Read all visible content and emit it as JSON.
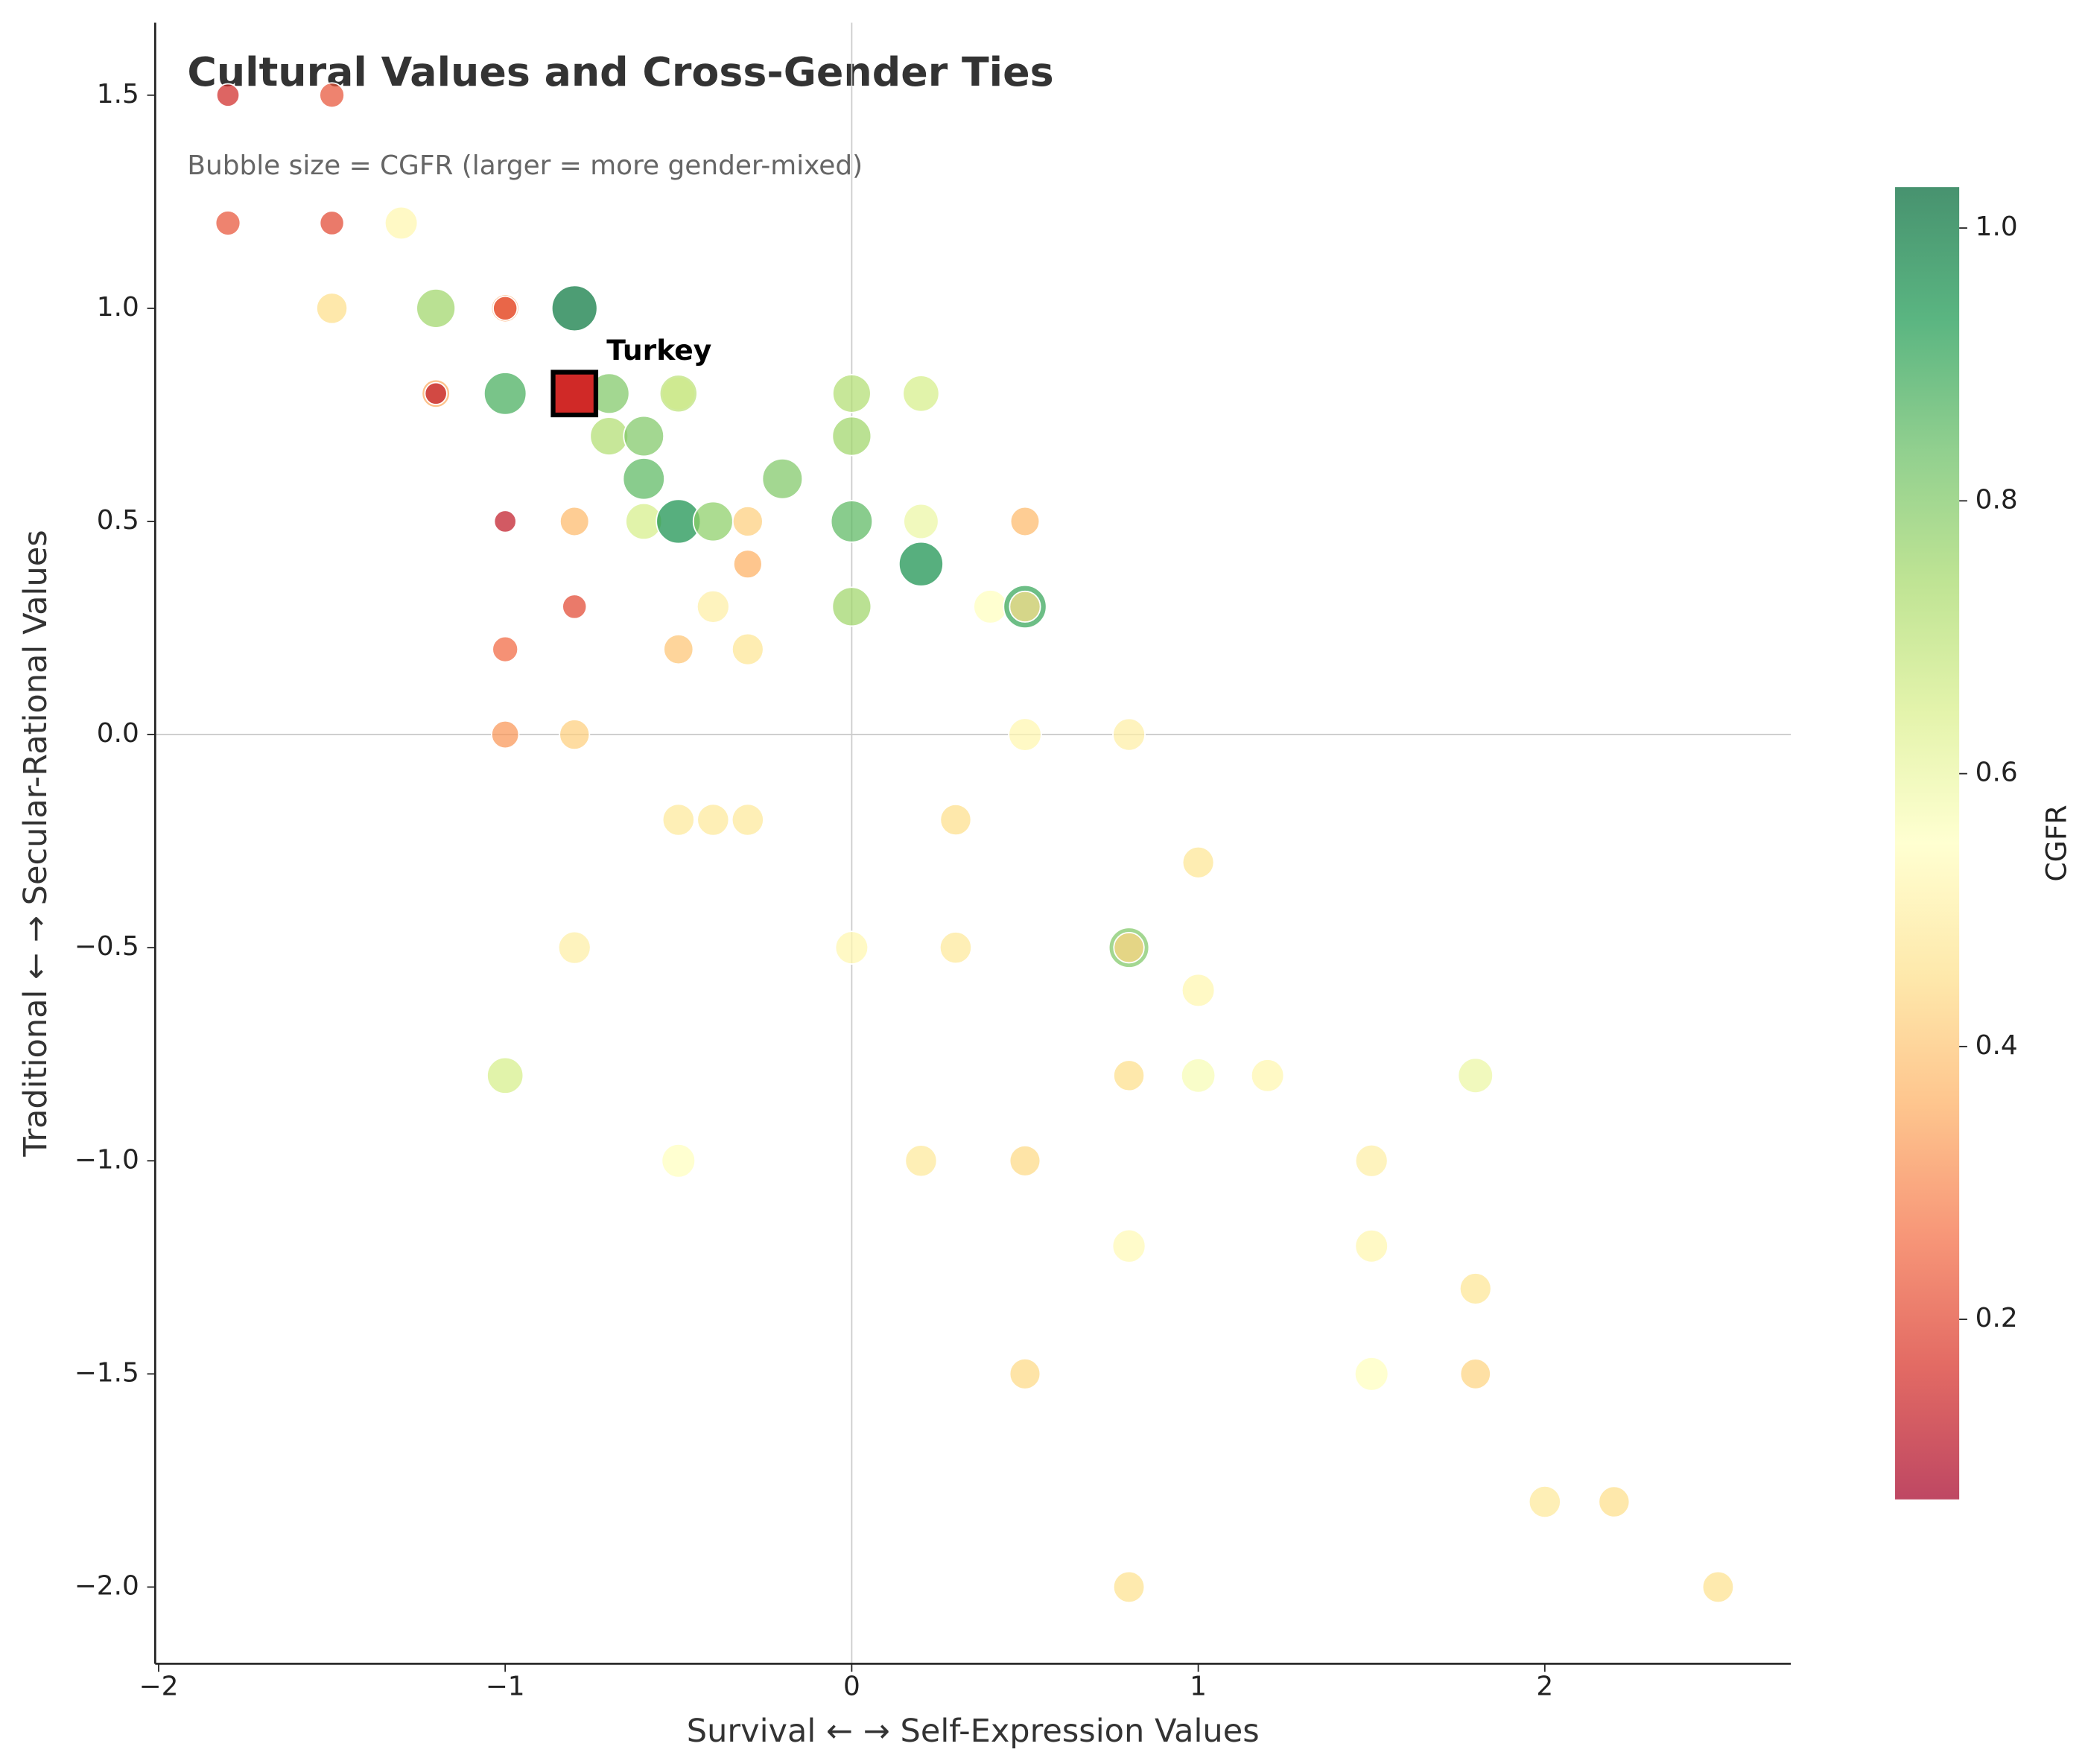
{
  "chart_data": {
    "type": "bubble",
    "title": "Cultural Values and Cross-Gender Ties",
    "subtitle": "Bubble size = CGFR (larger = more gender-mixed)",
    "x_label": "Survival ← → Self-Expression Values",
    "y_label": "Traditional ← → Secular-Rational Values",
    "colorbar_label": "CGFR",
    "xlim": [
      -2.01,
      2.71
    ],
    "ylim": [
      -2.18,
      1.67
    ],
    "xticks": [
      {
        "value": -2,
        "label": "−2"
      },
      {
        "value": -1,
        "label": "−1"
      },
      0,
      1,
      2
    ],
    "yticks": [
      {
        "value": -2,
        "label": "−2.0"
      },
      {
        "value": -1.5,
        "label": "−1.5"
      },
      {
        "value": -1,
        "label": "−1.0"
      },
      {
        "value": -0.5,
        "label": "−0.5"
      },
      {
        "value": 0,
        "label": "0.0"
      },
      0.5,
      {
        "value": 1,
        "label": "1.0"
      },
      1.5
    ],
    "axhline": 0,
    "axvline": 0,
    "clim": [
      0.068,
      1.03
    ],
    "cticks": [
      0.2,
      0.4,
      0.6,
      0.8,
      {
        "value": 1,
        "label": "1.0"
      }
    ],
    "colormap": [
      "#a50026",
      "#d73027",
      "#f46d43",
      "#fdae61",
      "#fee08b",
      "#ffffbf",
      "#d9ef8b",
      "#a6d96a",
      "#66bd63",
      "#1a9850",
      "#006837"
    ],
    "series": [
      {
        "x": [
          -1.8,
          -1.5,
          -1.8,
          -1.5,
          -1.3,
          -1.5,
          -1.2,
          -1.0,
          -1.0,
          -0.8,
          -1.2,
          -1.2,
          -1.0,
          -0.7,
          -0.5,
          -0.5,
          -0.7,
          -0.6,
          0,
          0.2,
          0,
          -0.6,
          -0.2,
          -1.0,
          -0.8,
          -0.6,
          -0.5,
          -0.4,
          -0.3,
          0,
          0.2,
          0.5,
          -0.3,
          0.2,
          -0.8,
          -0.4,
          0,
          0.4,
          0.5,
          0.5,
          -1.0,
          -0.5,
          -0.3,
          -1.0,
          -0.8,
          0.5,
          0.8,
          -0.5,
          -0.4,
          -0.3,
          0.3,
          1.0,
          -0.8,
          0,
          0.3,
          0.8,
          0.8,
          1.0,
          -1.0,
          0.8,
          1.0,
          1.2,
          1.8,
          -0.5,
          0.2,
          0.5,
          1.5,
          0.8,
          1.5,
          1.8,
          0.5,
          1.5,
          1.8,
          2.0,
          2.2,
          0.8,
          2.5
        ],
        "y": [
          1.5,
          1.5,
          1.2,
          1.2,
          1.2,
          1.0,
          1.0,
          1.0,
          1.0,
          1.0,
          0.8,
          0.8,
          0.8,
          0.8,
          0.8,
          0.8,
          0.7,
          0.7,
          0.8,
          0.8,
          0.7,
          0.6,
          0.6,
          0.5,
          0.5,
          0.5,
          0.5,
          0.5,
          0.5,
          0.5,
          0.5,
          0.5,
          0.4,
          0.4,
          0.3,
          0.3,
          0.3,
          0.3,
          0.3,
          0.3,
          0.2,
          0.2,
          0.2,
          0.0,
          0.0,
          0.0,
          0.0,
          -0.2,
          -0.2,
          -0.2,
          -0.2,
          -0.3,
          -0.5,
          -0.5,
          -0.5,
          -0.5,
          -0.5,
          -0.6,
          -0.8,
          -0.8,
          -0.8,
          -0.8,
          -0.8,
          -1.0,
          -1.0,
          -1.0,
          -1.0,
          -1.2,
          -1.2,
          -1.3,
          -1.5,
          -1.5,
          -1.5,
          -1.8,
          -1.8,
          -2.0,
          -2.0
        ],
        "values": [
          0.15,
          0.22,
          0.22,
          0.2,
          0.52,
          0.45,
          0.75,
          0.33,
          0.2,
          1.0,
          0.35,
          0.12,
          0.88,
          0.8,
          0.55,
          0.7,
          0.72,
          0.8,
          0.72,
          0.65,
          0.75,
          0.85,
          0.8,
          0.12,
          0.38,
          0.65,
          0.95,
          0.78,
          0.42,
          0.85,
          0.6,
          0.38,
          0.36,
          0.95,
          0.2,
          0.5,
          0.75,
          0.55,
          0.9,
          0.45,
          0.25,
          0.4,
          0.47,
          0.32,
          0.42,
          0.52,
          0.5,
          0.48,
          0.48,
          0.48,
          0.45,
          0.47,
          0.5,
          0.52,
          0.48,
          0.8,
          0.43,
          0.52,
          0.65,
          0.45,
          0.57,
          0.52,
          0.6,
          0.55,
          0.48,
          0.44,
          0.5,
          0.53,
          0.52,
          0.47,
          0.44,
          0.55,
          0.43,
          0.48,
          0.45,
          0.46,
          0.46
        ]
      }
    ],
    "highlight": {
      "label": "Turkey",
      "x": -0.8,
      "y": 0.8,
      "value": 0.15
    }
  }
}
